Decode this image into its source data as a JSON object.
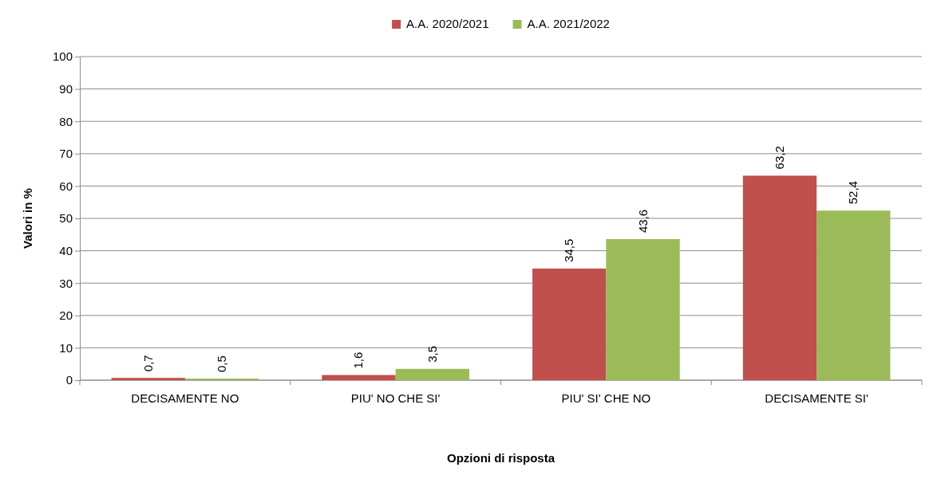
{
  "chart_data": {
    "type": "bar",
    "xlabel": "Opzioni di risposta",
    "ylabel": "Valori in %",
    "categories": [
      "DECISAMENTE NO",
      "PIU' NO CHE SI'",
      "PIU' SI' CHE NO",
      "DECISAMENTE SI'"
    ],
    "series": [
      {
        "name": "A.A. 2020/2021",
        "color": "#c0504d",
        "values": [
          0.7,
          1.6,
          34.5,
          63.2
        ],
        "value_labels": [
          "0,7",
          "1,6",
          "34,5",
          "63,2"
        ]
      },
      {
        "name": "A.A. 2021/2022",
        "color": "#9bbb59",
        "values": [
          0.5,
          3.5,
          43.6,
          52.4
        ],
        "value_labels": [
          "0,5",
          "3,5",
          "43,6",
          "52,4"
        ]
      }
    ],
    "ylim": [
      0,
      100
    ],
    "yticks": [
      0,
      10,
      20,
      30,
      40,
      50,
      60,
      70,
      80,
      90,
      100
    ],
    "grid": "y",
    "legend": "top"
  }
}
